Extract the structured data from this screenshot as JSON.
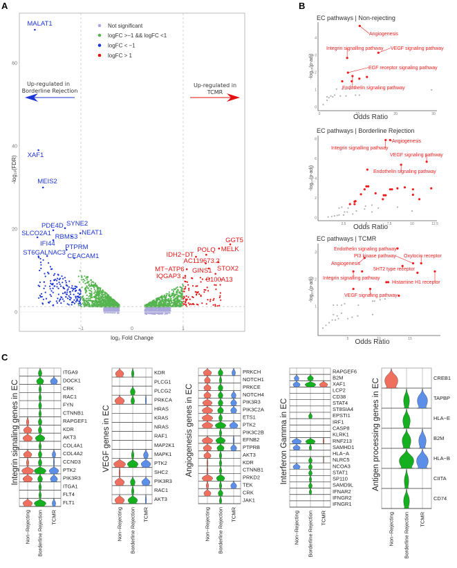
{
  "panel_labels": {
    "a": "A",
    "b": "B",
    "c": "C"
  },
  "colors": {
    "not_sig": "#aaa8dc",
    "mid": "#55b44f",
    "down": "#1b35d6",
    "up": "#e31212",
    "b_sig": "#f21c1c",
    "b_ns": "#b0b0b0",
    "nr": "#f0705f",
    "br": "#14b020",
    "tcmr": "#5b8fe8"
  },
  "chart_data": [
    {
      "id": "volcano",
      "type": "scatter",
      "title": "",
      "xlabel": "log₂ Fold Change",
      "ylabel": "-log₁₀(FDR)",
      "xlim": [
        -2.2,
        2.2
      ],
      "ylim": [
        -4.7,
        72
      ],
      "xticks": [
        -1,
        0,
        1
      ],
      "yticks": [
        0,
        20,
        40,
        60
      ],
      "fc_thresholds": [
        -1,
        1
      ],
      "fdr_threshold": 1.3,
      "legend_position": "top-center",
      "legend": [
        "Not significant",
        "logFC >−1 && logFC <1",
        "logFC < −1",
        "logFC > 1"
      ],
      "annotations": {
        "left": [
          "Up-regulated in",
          "Borderline Rejection"
        ],
        "right": [
          "Up-regulated in",
          "TCMR"
        ]
      },
      "labeled_points": [
        {
          "gene": "MALAT1",
          "x": -1.9,
          "y": 68,
          "group": "down"
        },
        {
          "gene": "XAF1",
          "x": -1.83,
          "y": 39,
          "group": "down"
        },
        {
          "gene": "MEIS2",
          "x": -1.74,
          "y": 30,
          "group": "down"
        },
        {
          "gene": "PDE4D",
          "x": -1.54,
          "y": 19.7,
          "group": "down"
        },
        {
          "gene": "SYNE2",
          "x": -1.31,
          "y": 20.2,
          "group": "down"
        },
        {
          "gene": "SLCO2A1",
          "x": -1.85,
          "y": 18,
          "group": "down"
        },
        {
          "gene": "RBMS3",
          "x": -1.18,
          "y": 18.2,
          "group": "down"
        },
        {
          "gene": "NEAT1",
          "x": -1.01,
          "y": 19,
          "group": "down"
        },
        {
          "gene": "IFI44",
          "x": -1.54,
          "y": 17.3,
          "group": "down"
        },
        {
          "gene": "PTPRM",
          "x": -1.28,
          "y": 15,
          "group": "down"
        },
        {
          "gene": "ST6GALNAC3",
          "x": -1.66,
          "y": 13.5,
          "group": "down"
        },
        {
          "gene": "CEACAM1",
          "x": -1.13,
          "y": 13,
          "group": "down"
        },
        {
          "gene": "GGT5",
          "x": 1.92,
          "y": 16.3,
          "group": "up"
        },
        {
          "gene": "MELK",
          "x": 1.7,
          "y": 15.3,
          "group": "up"
        },
        {
          "gene": "POLQ",
          "x": 1.45,
          "y": 13.8,
          "group": "up"
        },
        {
          "gene": "IDH2−DT",
          "x": 1.25,
          "y": 13.3,
          "group": "up"
        },
        {
          "gene": "AC119673.2",
          "x": 1.44,
          "y": 11.7,
          "group": "up"
        },
        {
          "gene": "STOX2",
          "x": 1.69,
          "y": 12,
          "group": "up"
        },
        {
          "gene": "GINS1",
          "x": 1.5,
          "y": 10.5,
          "group": "up"
        },
        {
          "gene": "MT−ATP6",
          "x": 1.07,
          "y": 10.3,
          "group": "up"
        },
        {
          "gene": "IQGAP3",
          "x": 1.04,
          "y": 8.7,
          "group": "up"
        },
        {
          "gene": "S100A13",
          "x": 1.63,
          "y": 9.2,
          "group": "up"
        }
      ]
    },
    {
      "id": "ec-nonrejecting",
      "type": "scatter",
      "title": "EC pathways | Non-rejecting",
      "xlabel": "Odds Ratio",
      "ylabel": "-log₁₀(p-adj)",
      "xticks": [
        0,
        10,
        20,
        30
      ],
      "yticks": [
        0,
        1,
        2,
        3,
        4
      ],
      "significant": [
        {
          "x": 10.6,
          "y": 4.7,
          "label": "Angiogenesis"
        },
        {
          "x": 7.3,
          "y": 2.85,
          "label": "Integrin signalling pathway"
        },
        {
          "x": 15.5,
          "y": 3.15,
          "label": "VEGF signaling pathway"
        },
        {
          "x": 7.5,
          "y": 2.0,
          "label": "EGF receptor signaling pathway"
        },
        {
          "x": 8.7,
          "y": 1.8,
          "label": "Endothelin signaling pathway"
        },
        {
          "x": 6.0,
          "y": 1.5
        },
        {
          "x": 8.5,
          "y": 1.5
        },
        {
          "x": 10.5,
          "y": 1.65
        },
        {
          "x": 12.5,
          "y": 1.75
        }
      ],
      "nonsignificant": [
        [
          1,
          0.15
        ],
        [
          2,
          0.4
        ],
        [
          2,
          0.6
        ],
        [
          2.5,
          0.55
        ],
        [
          3,
          0.65
        ],
        [
          3.5,
          0.6
        ],
        [
          4,
          0.7
        ],
        [
          4.5,
          1.05
        ],
        [
          5.5,
          0.65
        ],
        [
          6,
          1.05
        ],
        [
          7,
          0.65
        ],
        [
          7,
          1.05
        ],
        [
          8,
          1.05
        ],
        [
          9.5,
          0.7
        ],
        [
          9.5,
          1.1
        ],
        [
          10.5,
          0.7
        ],
        [
          29.5,
          1.0
        ]
      ]
    },
    {
      "id": "ec-borderline",
      "type": "scatter",
      "title": "EC pathways | Borderline Rejection",
      "xlabel": "Odds Ratio",
      "ylabel": "-log₁₀(p-adj)",
      "xticks": [
        2.5,
        5.0,
        7.5,
        10.0,
        12.5
      ],
      "yticks": [
        0,
        2,
        4,
        6,
        8
      ],
      "significant": [
        {
          "x": 7.6,
          "y": 7.9,
          "label": "Angiogenesis"
        },
        {
          "x": 7.1,
          "y": 7.9,
          "label": "Integrin signalling pathway"
        },
        {
          "x": 11.6,
          "y": 5.7,
          "label": "VEGF signaling pathway"
        },
        {
          "x": 8.8,
          "y": 5.4,
          "label": "Endothelin signaling pathway"
        },
        {
          "x": 5.1,
          "y": 4.9
        },
        {
          "x": 4.4,
          "y": 2.4
        },
        {
          "x": 4.8,
          "y": 2.9
        },
        {
          "x": 5.0,
          "y": 3.2
        },
        {
          "x": 5.2,
          "y": 3.2
        },
        {
          "x": 6.0,
          "y": 2.5
        },
        {
          "x": 3.2,
          "y": 1.4
        },
        {
          "x": 3.7,
          "y": 1.4
        },
        {
          "x": 3.7,
          "y": 1.65
        },
        {
          "x": 3.8,
          "y": 1.7
        },
        {
          "x": 6.8,
          "y": 1.9
        },
        {
          "x": 6.9,
          "y": 2.3
        },
        {
          "x": 7.1,
          "y": 2.3
        },
        {
          "x": 7.6,
          "y": 2.9
        },
        {
          "x": 7.8,
          "y": 2.9
        },
        {
          "x": 8.4,
          "y": 3.0
        },
        {
          "x": 9.2,
          "y": 3.1
        },
        {
          "x": 10.1,
          "y": 2.9
        },
        {
          "x": 10.1,
          "y": 2.35
        },
        {
          "x": 10.8,
          "y": 1.9
        },
        {
          "x": 12.1,
          "y": 3.0
        }
      ],
      "nonsignificant": [
        [
          0.8,
          0.1
        ],
        [
          1.2,
          0.15
        ],
        [
          1.5,
          0.2
        ],
        [
          1.8,
          0.25
        ],
        [
          2,
          0.3
        ],
        [
          2.5,
          0.3
        ],
        [
          2.9,
          0.6
        ],
        [
          2,
          1.0
        ],
        [
          2.3,
          1.1
        ],
        [
          2.6,
          0.6
        ],
        [
          3,
          1.0
        ],
        [
          3.5,
          0.4
        ],
        [
          3.9,
          0.7
        ],
        [
          4.8,
          0.9
        ],
        [
          4.9,
          1.2
        ],
        [
          5.6,
          0.6
        ],
        [
          5.6,
          1.3
        ],
        [
          6.3,
          1.0
        ],
        [
          8.4,
          1.1
        ],
        [
          10,
          0.7
        ]
      ]
    },
    {
      "id": "ec-tcmr",
      "type": "scatter",
      "title": "EC pathways | TCMR",
      "xlabel": "Odds Ratio",
      "ylabel": "-log₁₀(p-adj)",
      "xticks": [
        5,
        10,
        15
      ],
      "yticks": [
        1,
        2,
        3
      ],
      "significant": [
        {
          "x": 13,
          "y": 3.15,
          "label": "Endothelin signaling pathway"
        },
        {
          "x": 15.5,
          "y": 2.6,
          "label": "PI3 kinase pathway"
        },
        {
          "x": 16.8,
          "y": 2.6,
          "label": "Oxytocin receptor"
        },
        {
          "x": 7.7,
          "y": 2.8,
          "label": "Angiogenesis"
        },
        {
          "x": 13.8,
          "y": 2.5,
          "label": "5HT2 type receptor"
        },
        {
          "x": 19,
          "y": 2.3,
          "label": "Histamine H1 receptor"
        },
        {
          "x": 5.9,
          "y": 2.3,
          "label": "Integrin signalling pathway"
        },
        {
          "x": 8.6,
          "y": 1.65,
          "label": "VEGF signaling pathway"
        },
        {
          "x": 16.2,
          "y": 2.25
        },
        {
          "x": 7.3,
          "y": 2.3
        },
        {
          "x": 11.2,
          "y": 1.9
        },
        {
          "x": 11.5,
          "y": 1.9
        },
        {
          "x": 5.9,
          "y": 1.65
        },
        {
          "x": 13.2,
          "y": 1.4
        }
      ],
      "nonsignificant": [
        [
          1,
          0.2
        ],
        [
          1.5,
          0.3
        ],
        [
          2,
          0.4
        ],
        [
          2.5,
          0.5
        ],
        [
          3,
          0.5
        ],
        [
          3.5,
          0.55
        ],
        [
          2.7,
          0.7
        ],
        [
          3.3,
          0.65
        ],
        [
          2.7,
          1.05
        ],
        [
          3.3,
          1.05
        ],
        [
          4,
          1.05
        ],
        [
          4.5,
          1.1
        ],
        [
          4,
          0.75
        ],
        [
          5,
          0.55
        ],
        [
          5.7,
          0.6
        ],
        [
          6.6,
          0.65
        ],
        [
          6.7,
          1.05
        ],
        [
          9,
          1.2
        ],
        [
          9.3,
          1.2
        ],
        [
          9,
          0.7
        ],
        [
          10.2,
          1.25
        ],
        [
          11,
          1.28
        ]
      ]
    }
  ],
  "violins": {
    "groups": [
      "Non−Rejecting",
      "Borderline Rejection",
      "TCMR"
    ],
    "panels": [
      {
        "title": "Integrin signaling genes in EC",
        "group_colors": [
          "#f0705f",
          "#14b020",
          "#5b8fe8"
        ],
        "genes": [
          "ITGA9",
          "DOCK1",
          "CRK",
          "RAC1",
          "FYN",
          "CTNNB1",
          "RAPGEF1",
          "KDR",
          "AKT3",
          "COL4A1",
          "COL4A2",
          "CCND3",
          "PTK2",
          "PIK3R3",
          "ITGA1",
          "FLT4",
          "FLT1"
        ],
        "density": [
          [
            0,
            0.3,
            0
          ],
          [
            0,
            0.6,
            0.6
          ],
          [
            0,
            0.2,
            0
          ],
          [
            0,
            0.2,
            0
          ],
          [
            0,
            0.25,
            0
          ],
          [
            0,
            0.2,
            0
          ],
          [
            0.2,
            0.3,
            0
          ],
          [
            0.7,
            0.3,
            0
          ],
          [
            0.8,
            0.8,
            0
          ],
          [
            0,
            0.2,
            0
          ],
          [
            0.7,
            0.3,
            0.3
          ],
          [
            0.2,
            0.3,
            0.1
          ],
          [
            1,
            1,
            0.8
          ],
          [
            0.8,
            0.4,
            0.6
          ],
          [
            0,
            0.2,
            0
          ],
          [
            0,
            0.2,
            0
          ],
          [
            0.8,
            1,
            0.3
          ]
        ]
      },
      {
        "title": "VEGF genes in EC",
        "group_colors": [
          "#f0705f",
          "#14b020",
          "#5b8fe8"
        ],
        "genes": [
          "KDR",
          "PLCG1",
          "PLCG2",
          "PRKCA",
          "HRAS",
          "KRAS",
          "NRAS",
          "RAF1",
          "MAP2K1",
          "MAPK1",
          "PTK2",
          "SHC2",
          "PIK3R3",
          "RAC1",
          "AKT3"
        ],
        "density": [
          [
            0.7,
            0.2,
            0
          ],
          [
            0,
            0,
            0
          ],
          [
            0,
            0.4,
            0
          ],
          [
            0.8,
            0.3,
            0.1
          ],
          [
            0,
            0,
            0
          ],
          [
            0,
            0,
            0
          ],
          [
            0,
            0,
            0
          ],
          [
            0,
            0,
            0
          ],
          [
            0,
            0,
            0
          ],
          [
            0,
            0.2,
            0.4
          ],
          [
            1,
            0.9,
            0.8
          ],
          [
            0.1,
            0,
            0
          ],
          [
            0.8,
            0.4,
            0.7
          ],
          [
            0,
            0.2,
            0
          ],
          [
            0.8,
            0.8,
            0.1
          ]
        ]
      },
      {
        "title": "Angiogenesis genes in EC",
        "group_colors": [
          "#f0705f",
          "#14b020",
          "#5b8fe8"
        ],
        "genes": [
          "PRKCH",
          "NOTCH1",
          "PRKCE",
          "NOTCH4",
          "PIK3R3",
          "PIK3C2A",
          "ETS1",
          "PTK2",
          "PIK3C2B",
          "EFNB2",
          "PTPRB",
          "AKT3",
          "KDR",
          "CTNNB1",
          "PRKD2",
          "TEK",
          "CRK",
          "JAK1"
        ],
        "density": [
          [
            0.7,
            0.4,
            0.3
          ],
          [
            0.5,
            0.2,
            0
          ],
          [
            0.6,
            0.4,
            0
          ],
          [
            0.6,
            0.4,
            0.4
          ],
          [
            0.8,
            0.4,
            0.5
          ],
          [
            0.9,
            0.5,
            0.5
          ],
          [
            0.9,
            0.3,
            0
          ],
          [
            0.9,
            0.9,
            0.7
          ],
          [
            0,
            0.2,
            0
          ],
          [
            0.9,
            0.8,
            0.1
          ],
          [
            0.7,
            0.6,
            0.5
          ],
          [
            0.6,
            0.2,
            0
          ],
          [
            0.1,
            0.2,
            0
          ],
          [
            0.1,
            0.2,
            0
          ],
          [
            0.9,
            0.7,
            0
          ],
          [
            0.2,
            0.2,
            0.5
          ],
          [
            0.6,
            0.4,
            0
          ],
          [
            0,
            0.2,
            0
          ]
        ]
      },
      {
        "title": "Interferon Gamma in EC",
        "group_colors": [
          "#5b8fe8",
          "#14b020",
          "#f0705f"
        ],
        "genes": [
          "RAPGEF6",
          "B2M",
          "XAF1",
          "LCP2",
          "CD38",
          "STAT4",
          "ST8SIA4",
          "EPSTI1",
          "IRF1",
          "CASP8",
          "KLRK1",
          "RNF213",
          "SAMHD1",
          "HLA−A",
          "NLRC5",
          "NCOA3",
          "STAT1",
          "SP110",
          "SAMD9L",
          "IFNAR2",
          "IFNGR2",
          "IFNGR1"
        ],
        "density": [
          [
            0,
            0,
            0
          ],
          [
            0.4,
            0.5,
            0
          ],
          [
            0.6,
            0.9,
            0.7
          ],
          [
            0,
            0,
            0
          ],
          [
            0,
            0,
            0
          ],
          [
            0,
            0,
            0
          ],
          [
            0,
            0,
            0
          ],
          [
            0,
            0.3,
            0
          ],
          [
            0,
            0,
            0
          ],
          [
            0,
            0,
            0
          ],
          [
            0,
            0,
            0
          ],
          [
            0.8,
            0.8,
            0.1
          ],
          [
            0.6,
            0.2,
            0
          ],
          [
            0,
            0,
            0
          ],
          [
            0,
            0.3,
            0.05
          ],
          [
            0.6,
            0.3,
            0
          ],
          [
            0,
            0.3,
            0
          ],
          [
            0,
            0.2,
            0
          ],
          [
            0,
            0.3,
            0
          ],
          [
            0,
            0.2,
            0
          ],
          [
            0,
            0,
            0
          ],
          [
            0,
            0,
            0
          ]
        ]
      },
      {
        "title": "Antigen processing genes in EC",
        "group_colors": [
          "#f0705f",
          "#14b020",
          "#5b8fe8"
        ],
        "genes": [
          "CREB1",
          "TAPBP",
          "HLA−E",
          "B2M",
          "HLA−B",
          "CIITA",
          "CD74"
        ],
        "density": [
          [
            0.9,
            0,
            0
          ],
          [
            0,
            0.4,
            0.7
          ],
          [
            0,
            0.5,
            0
          ],
          [
            0,
            0.6,
            0.5
          ],
          [
            0,
            1,
            0.8
          ],
          [
            0,
            0.3,
            0
          ],
          [
            0,
            0.4,
            0
          ]
        ]
      }
    ]
  }
}
